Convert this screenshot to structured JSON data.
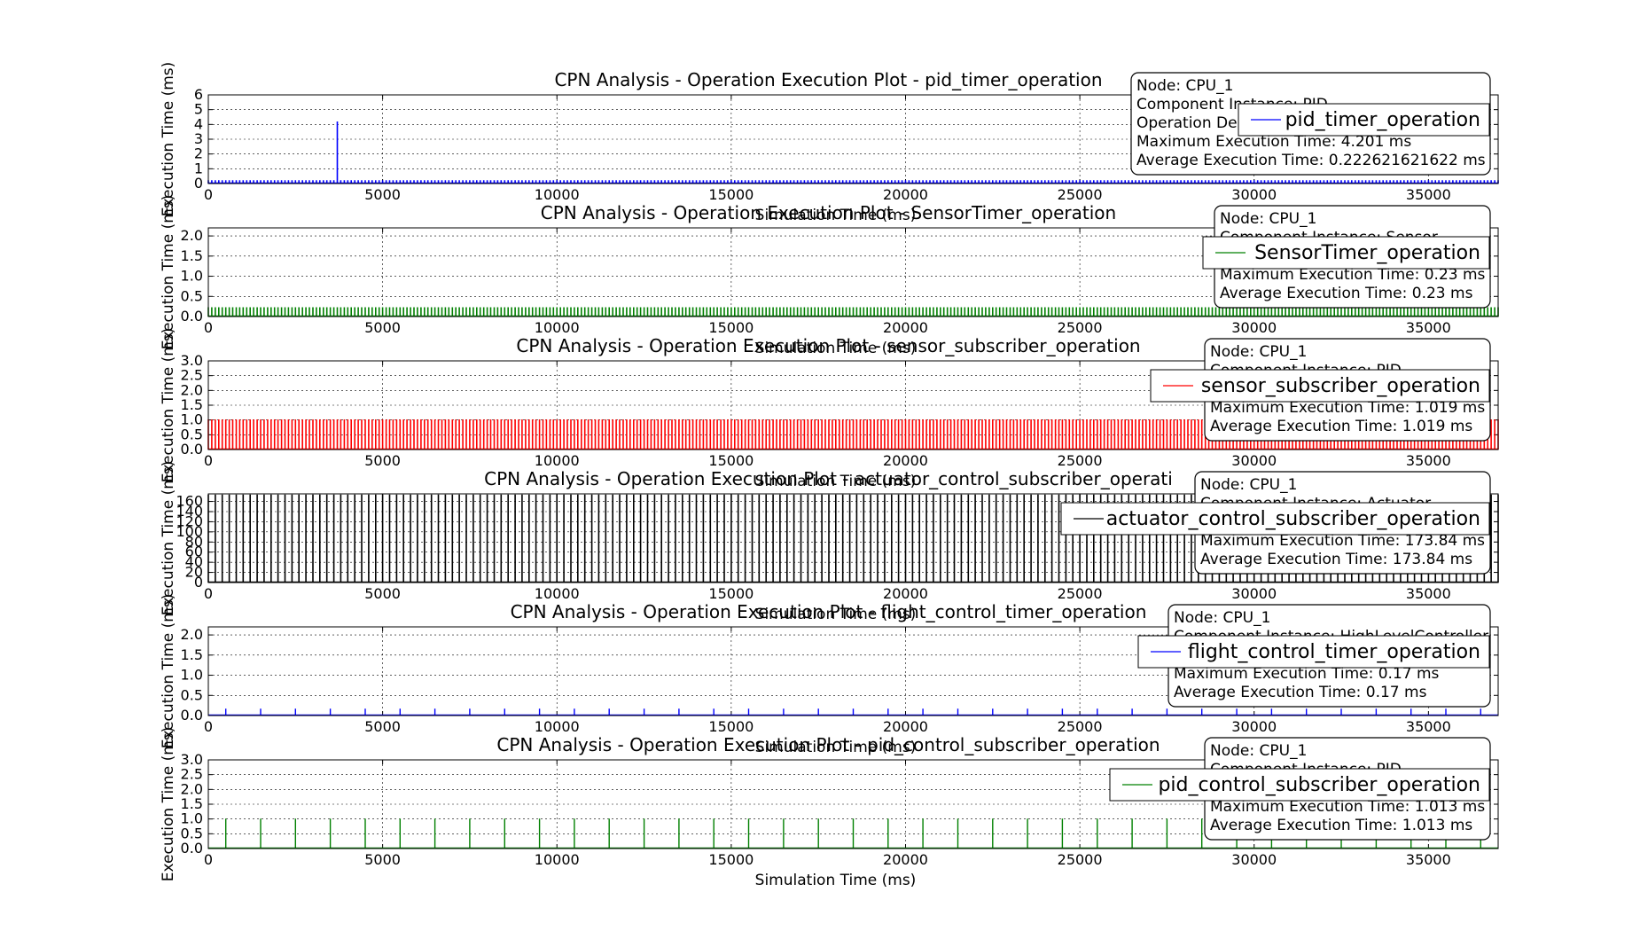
{
  "figure": {},
  "chart_data": [
    {
      "type": "line",
      "title": "CPN Analysis - Operation Execution Plot - pid_timer_operation",
      "xlabel": "Simulation Time (ms)",
      "ylabel": "Execution Time (ms)",
      "xlim": [
        0,
        37000
      ],
      "ylim": [
        0,
        6
      ],
      "xticks": [
        "0",
        "5000",
        "10000",
        "15000",
        "20000",
        "25000",
        "30000",
        "35000"
      ],
      "yticks": [
        "0",
        "1",
        "2",
        "3",
        "4",
        "5",
        "6"
      ],
      "grid": true,
      "legend_position": "upper right",
      "series": [
        {
          "name": "pid_timer_operation",
          "color": "#0000ff",
          "period_ms": 100,
          "start_ms": 0,
          "end_ms": 37000,
          "typical_value": 0.2226,
          "max_value": 4.201
        }
      ],
      "info_box": [
        "Node: CPU_1",
        "Component Instance: PID",
        "Operation De",
        "Maximum Execution Time: 4.201 ms",
        "Average Execution Time: 0.222621621622 ms"
      ]
    },
    {
      "type": "line",
      "title": "CPN Analysis - Operation Execution Plot - SensorTimer_operation",
      "xlabel": "Simulation Time (ms)",
      "ylabel": "Execution Time (ms)",
      "xlim": [
        0,
        37000
      ],
      "ylim": [
        0,
        2.2
      ],
      "xticks": [
        "0",
        "5000",
        "10000",
        "15000",
        "20000",
        "25000",
        "30000",
        "35000"
      ],
      "yticks": [
        "0.0",
        "0.5",
        "1.0",
        "1.5",
        "2.0"
      ],
      "grid": true,
      "legend_position": "upper right",
      "series": [
        {
          "name": "SensorTimer_operation",
          "color": "#008000",
          "period_ms": 100,
          "start_ms": 0,
          "end_ms": 37000,
          "typical_value": 0.23,
          "max_value": 0.23
        }
      ],
      "info_box": [
        "Node: CPU_1",
        "Component Instance: Sensor",
        "",
        "Maximum Execution Time: 0.23 ms",
        "Average Execution Time: 0.23 ms"
      ]
    },
    {
      "type": "line",
      "title": "CPN Analysis - Operation Execution Plot - sensor_subscriber_operation",
      "xlabel": "Simulation Time (ms)",
      "ylabel": "Execution Time (ms)",
      "xlim": [
        0,
        37000
      ],
      "ylim": [
        0,
        3
      ],
      "xticks": [
        "0",
        "5000",
        "10000",
        "15000",
        "20000",
        "25000",
        "30000",
        "35000"
      ],
      "yticks": [
        "0.0",
        "0.5",
        "1.0",
        "1.5",
        "2.0",
        "2.5",
        "3.0"
      ],
      "grid": true,
      "legend_position": "upper right",
      "series": [
        {
          "name": "sensor_subscriber_operation",
          "color": "#ff0000",
          "period_ms": 100,
          "start_ms": 0,
          "end_ms": 37000,
          "typical_value": 1.019,
          "max_value": 1.019
        }
      ],
      "info_box": [
        "Node: CPU_1",
        "Component Instance: PID",
        "",
        "Maximum Execution Time: 1.019 ms",
        "Average Execution Time: 1.019 ms"
      ]
    },
    {
      "type": "line",
      "title": "CPN Analysis - Operation Execution Plot - actuator_control_subscriber_operati",
      "xlabel": "Simulation Time (ms)",
      "ylabel": "Execution Time (ms)",
      "xlim": [
        0,
        37000
      ],
      "ylim": [
        0,
        175
      ],
      "xticks": [
        "0",
        "5000",
        "10000",
        "15000",
        "20000",
        "25000",
        "30000",
        "35000"
      ],
      "yticks": [
        "0",
        "20",
        "40",
        "60",
        "80",
        "100",
        "120",
        "140",
        "160"
      ],
      "grid": true,
      "legend_position": "upper right",
      "series": [
        {
          "name": "actuator_control_subscriber_operation",
          "color": "#000000",
          "period_ms": 200,
          "start_ms": 0,
          "end_ms": 37000,
          "typical_value": 173.84,
          "max_value": 173.84
        }
      ],
      "info_box": [
        "Node: CPU_1",
        "Component Instance: Actuator",
        "",
        "Maximum Execution Time: 173.84 ms",
        "Average Execution Time: 173.84 ms"
      ]
    },
    {
      "type": "line",
      "title": "CPN Analysis - Operation Execution Plot - flight_control_timer_operation",
      "xlabel": "Simulation Time (ms)",
      "ylabel": "Execution Time (ms)",
      "xlim": [
        0,
        37000
      ],
      "ylim": [
        0,
        2.2
      ],
      "xticks": [
        "0",
        "5000",
        "10000",
        "15000",
        "20000",
        "25000",
        "30000",
        "35000"
      ],
      "yticks": [
        "0.0",
        "0.5",
        "1.0",
        "1.5",
        "2.0"
      ],
      "grid": true,
      "legend_position": "upper right",
      "series": [
        {
          "name": "flight_control_timer_operation",
          "color": "#0000ff",
          "period_ms": 1000,
          "start_ms": 500,
          "end_ms": 37000,
          "typical_value": 0.17,
          "max_value": 0.17
        }
      ],
      "info_box": [
        "Node: CPU_1",
        "Component Instance: HighLevelController",
        "",
        "Maximum Execution Time: 0.17 ms",
        "Average Execution Time: 0.17 ms"
      ]
    },
    {
      "type": "line",
      "title": "CPN Analysis - Operation Execution Plot - pid_control_subscriber_operation",
      "xlabel": "Simulation Time (ms)",
      "ylabel": "Execution Time (ms)",
      "xlim": [
        0,
        37000
      ],
      "ylim": [
        0,
        3
      ],
      "xticks": [
        "0",
        "5000",
        "10000",
        "15000",
        "20000",
        "25000",
        "30000",
        "35000"
      ],
      "yticks": [
        "0.0",
        "0.5",
        "1.0",
        "1.5",
        "2.0",
        "2.5",
        "3.0"
      ],
      "grid": true,
      "legend_position": "upper right",
      "series": [
        {
          "name": "pid_control_subscriber_operation",
          "color": "#008000",
          "period_ms": 1000,
          "start_ms": 500,
          "end_ms": 37000,
          "typical_value": 1.013,
          "max_value": 1.013
        }
      ],
      "info_box": [
        "Node: CPU_1",
        "Component Instance: PID",
        "",
        "Maximum Execution Time: 1.013 ms",
        "Average Execution Time: 1.013 ms"
      ]
    }
  ]
}
